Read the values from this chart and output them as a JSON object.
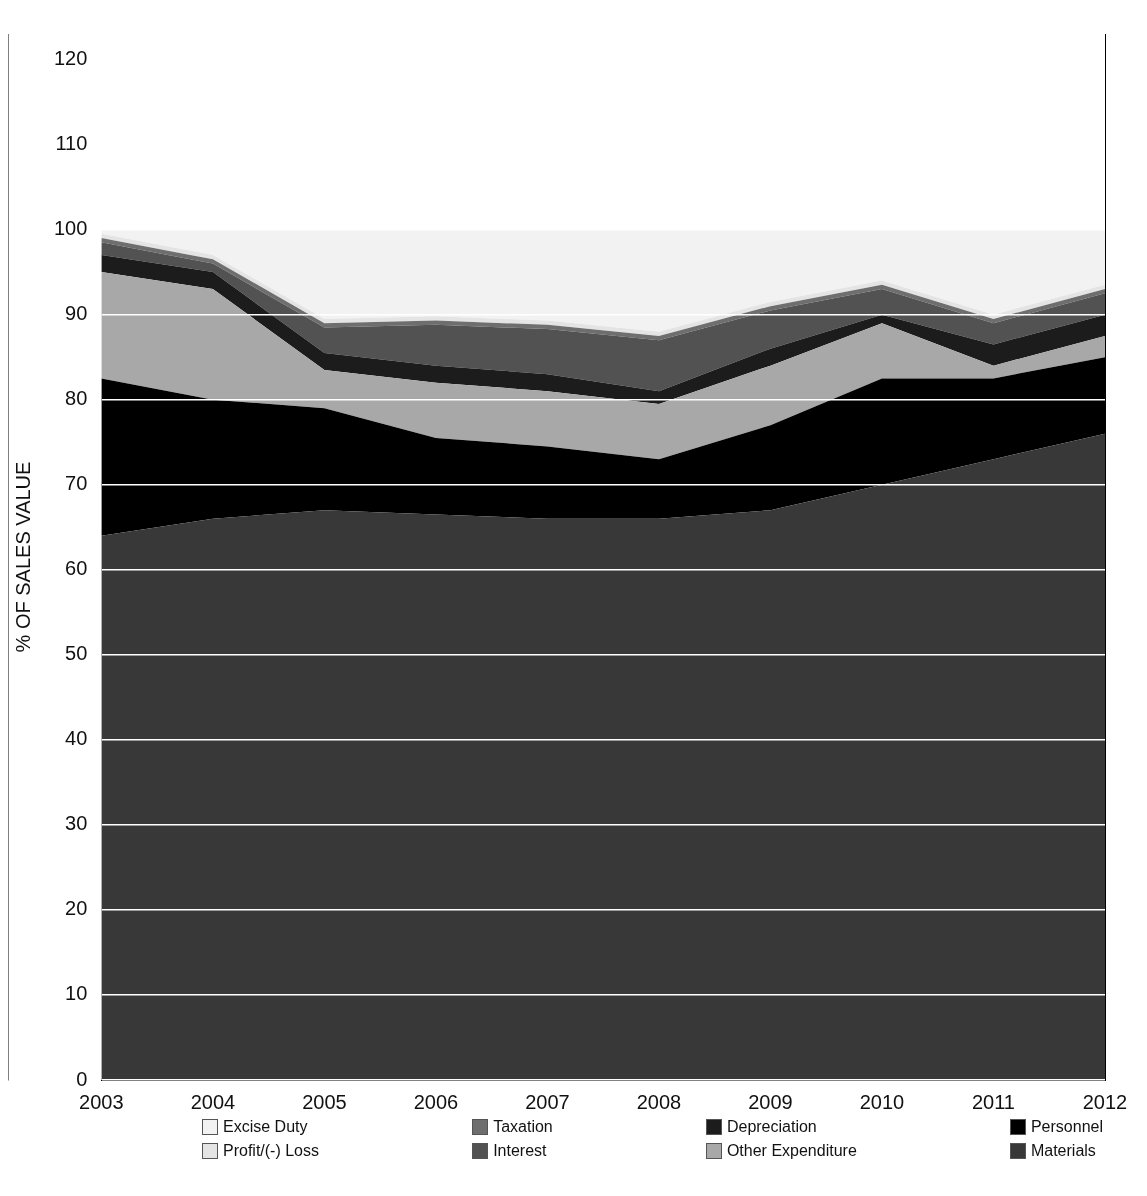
{
  "chart_data": {
    "type": "area",
    "stacked": true,
    "ylabel": "% OF SALES VALUE",
    "categories": [
      "2003",
      "2004",
      "2005",
      "2006",
      "2007",
      "2008",
      "2009",
      "2010",
      "2011",
      "2012"
    ],
    "ylim": [
      0,
      123
    ],
    "yticks": [
      0,
      10,
      20,
      30,
      40,
      50,
      60,
      70,
      80,
      90,
      100,
      110,
      120
    ],
    "grid": "y",
    "legend": "bottom",
    "series": [
      {
        "name": "Materials",
        "color": "#383838",
        "values": [
          64,
          66,
          67,
          66.5,
          66,
          66,
          67,
          70,
          73,
          76
        ]
      },
      {
        "name": "Personnel",
        "color": "#000000",
        "values": [
          18.5,
          14,
          12,
          9,
          8.5,
          7,
          10,
          12.5,
          9.5,
          9
        ]
      },
      {
        "name": "Other Expenditure",
        "color": "#a8a8a8",
        "values": [
          12.5,
          13,
          4.5,
          6.5,
          6.5,
          6.5,
          7,
          6.5,
          1.5,
          2.5
        ]
      },
      {
        "name": "Depreciation",
        "color": "#1c1c1c",
        "values": [
          2,
          2,
          2,
          2,
          2,
          1.5,
          2,
          1,
          2.5,
          2.5
        ]
      },
      {
        "name": "Interest",
        "color": "#525252",
        "values": [
          1.5,
          1,
          3,
          4.8,
          5.3,
          6,
          4.5,
          3,
          2.5,
          2.5
        ]
      },
      {
        "name": "Taxation",
        "color": "#6e6e6e",
        "values": [
          0.5,
          0.5,
          0.5,
          0.5,
          0.5,
          0.5,
          0.5,
          0.5,
          0.5,
          0.5
        ]
      },
      {
        "name": "Profit/(-) Loss",
        "color": "#e4e4e4",
        "values": [
          0.5,
          0.5,
          0.5,
          0.5,
          0.5,
          0.5,
          0.5,
          0.5,
          0.5,
          0.5
        ]
      },
      {
        "name": "Excise Duty",
        "color": "#f2f2f2",
        "values": [
          0.5,
          3,
          10.5,
          10.2,
          10.7,
          12,
          8.5,
          6,
          10,
          6.5
        ]
      }
    ]
  }
}
